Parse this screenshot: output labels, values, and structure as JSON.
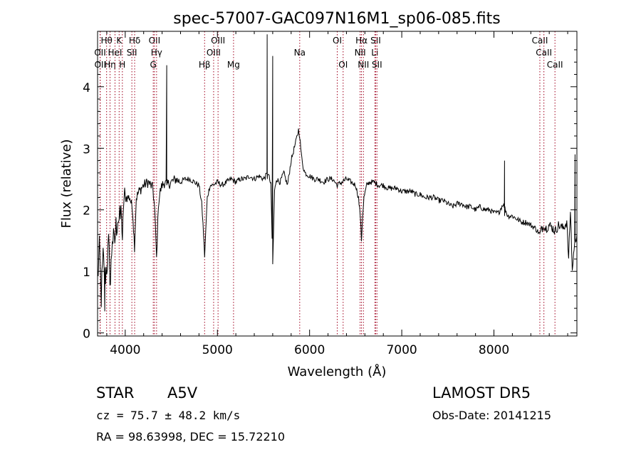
{
  "chart_data": {
    "type": "line",
    "title": "spec-57007-GAC097N16M1_sp06-085.fits",
    "xlabel": "Wavelength (Å)",
    "ylabel": "Flux (relative)",
    "xlim": [
      3700,
      8900
    ],
    "ylim": [
      -0.05,
      4.9
    ],
    "xticks": [
      4000,
      5000,
      6000,
      7000,
      8000
    ],
    "yticks": [
      0,
      1,
      2,
      3,
      4
    ],
    "grid": false,
    "legend": "none",
    "line_color": "#000000",
    "marker_color": "#a0001e",
    "spectrum": {
      "x": [
        3700,
        3720,
        3740,
        3760,
        3780,
        3800,
        3820,
        3840,
        3860,
        3880,
        3900,
        3920,
        3940,
        3960,
        3970,
        3980,
        4000,
        4050,
        4080,
        4101,
        4120,
        4150,
        4200,
        4250,
        4300,
        4320,
        4340,
        4360,
        4380,
        4400,
        4430,
        4450,
        4500,
        4550,
        4600,
        4650,
        4700,
        4750,
        4800,
        4830,
        4850,
        4861,
        4875,
        4890,
        4920,
        4950,
        5000,
        5050,
        5100,
        5150,
        5200,
        5250,
        5300,
        5350,
        5400,
        5450,
        5500,
        5550,
        5580,
        5600,
        5620,
        5640,
        5680,
        5720,
        5760,
        5800,
        5850,
        5880,
        5893,
        5910,
        5930,
        5950,
        6000,
        6050,
        6100,
        6150,
        6200,
        6250,
        6300,
        6350,
        6400,
        6450,
        6500,
        6530,
        6550,
        6563,
        6575,
        6590,
        6620,
        6650,
        6700,
        6750,
        6800,
        6850,
        6900,
        6950,
        7000,
        7050,
        7100,
        7150,
        7200,
        7250,
        7300,
        7350,
        7400,
        7450,
        7500,
        7550,
        7600,
        7650,
        7700,
        7750,
        7800,
        7850,
        7900,
        7950,
        8000,
        8050,
        8100,
        8150,
        8200,
        8250,
        8300,
        8350,
        8400,
        8450,
        8498,
        8520,
        8542,
        8560,
        8600,
        8640,
        8662,
        8700,
        8750,
        8790,
        8810,
        8830,
        8850,
        8870,
        8900
      ],
      "y": [
        0.9,
        1.3,
        0.6,
        1.2,
        0.9,
        1.1,
        1.4,
        0.8,
        1.6,
        1.4,
        1.7,
        1.9,
        1.8,
        2.0,
        1.3,
        2.1,
        2.2,
        2.2,
        2.0,
        1.4,
        2.2,
        2.3,
        2.4,
        2.45,
        2.35,
        2.0,
        1.2,
        2.1,
        2.3,
        2.4,
        2.45,
        2.4,
        2.45,
        2.5,
        2.45,
        2.5,
        2.5,
        2.45,
        2.4,
        2.1,
        1.6,
        1.25,
        1.7,
        2.2,
        2.4,
        2.4,
        2.45,
        2.4,
        2.45,
        2.5,
        2.45,
        2.5,
        2.5,
        2.55,
        2.5,
        2.55,
        2.5,
        2.6,
        2.4,
        1.1,
        2.3,
        2.5,
        2.45,
        2.6,
        2.4,
        2.8,
        3.1,
        3.3,
        3.2,
        2.9,
        2.7,
        2.6,
        2.55,
        2.5,
        2.5,
        2.45,
        2.5,
        2.5,
        2.4,
        2.45,
        2.5,
        2.45,
        2.4,
        2.2,
        1.9,
        1.5,
        1.9,
        2.2,
        2.4,
        2.45,
        2.45,
        2.4,
        2.4,
        2.35,
        2.35,
        2.35,
        2.3,
        2.3,
        2.3,
        2.25,
        2.25,
        2.2,
        2.2,
        2.2,
        2.15,
        2.15,
        2.1,
        2.05,
        2.1,
        2.1,
        2.05,
        2.05,
        2.0,
        2.05,
        2.0,
        2.0,
        1.95,
        1.95,
        2.1,
        1.9,
        1.9,
        1.85,
        1.8,
        1.8,
        1.75,
        1.7,
        1.6,
        1.7,
        1.75,
        1.7,
        1.75,
        1.7,
        1.65,
        1.75,
        1.7,
        1.8,
        1.2,
        2.0,
        1.0,
        1.4,
        1.6
      ],
      "spikes": [
        {
          "x": 3778,
          "y": 0.35
        },
        {
          "x": 4450,
          "y": 4.35
        },
        {
          "x": 4451,
          "y": 2.4
        },
        {
          "x": 5540,
          "y": 4.85
        },
        {
          "x": 5541,
          "y": 2.5
        },
        {
          "x": 5600,
          "y": 4.5
        },
        {
          "x": 8115,
          "y": 2.8
        },
        {
          "x": 8116,
          "y": 1.9
        },
        {
          "x": 8880,
          "y": 2.9
        },
        {
          "x": 8881,
          "y": 1.5
        }
      ]
    },
    "lines": [
      {
        "label": "Hθ",
        "x": 3798,
        "row": 0
      },
      {
        "label": "OII",
        "x": 3727,
        "row": 1
      },
      {
        "label": "OII",
        "x": 3729,
        "row": 2
      },
      {
        "label": "Hη",
        "x": 3835,
        "row": 2
      },
      {
        "label": "HeI",
        "x": 3889,
        "row": 1
      },
      {
        "label": "K",
        "x": 3934,
        "row": 0
      },
      {
        "label": "H",
        "x": 3969,
        "row": 2
      },
      {
        "label": "Hδ",
        "x": 4102,
        "row": 0
      },
      {
        "label": "SII",
        "x": 4072,
        "row": 1
      },
      {
        "label": "OII",
        "x": 4317,
        "row": 0
      },
      {
        "label": "Hγ",
        "x": 4340,
        "row": 1
      },
      {
        "label": "G",
        "x": 4304,
        "row": 2
      },
      {
        "label": "Hβ",
        "x": 4861,
        "row": 2
      },
      {
        "label": "OIII",
        "x": 4959,
        "row": 1
      },
      {
        "label": "OIII",
        "x": 5007,
        "row": 0
      },
      {
        "label": "Mg",
        "x": 5175,
        "row": 2
      },
      {
        "label": "Na",
        "x": 5893,
        "row": 1
      },
      {
        "label": "OI",
        "x": 6300,
        "row": 0
      },
      {
        "label": "OI",
        "x": 6364,
        "row": 2
      },
      {
        "label": "Hα",
        "x": 6563,
        "row": 0
      },
      {
        "label": "NII",
        "x": 6548,
        "row": 1
      },
      {
        "label": "NII",
        "x": 6584,
        "row": 2
      },
      {
        "label": "SII",
        "x": 6717,
        "row": 0
      },
      {
        "label": "Li",
        "x": 6708,
        "row": 1
      },
      {
        "label": "SII",
        "x": 6731,
        "row": 2
      },
      {
        "label": "CaII",
        "x": 8498,
        "row": 0
      },
      {
        "label": "CaII",
        "x": 8542,
        "row": 1
      },
      {
        "label": "CaII",
        "x": 8662,
        "row": 2
      }
    ]
  },
  "info": {
    "class": "STAR",
    "subclass": "A5V",
    "survey": "LAMOST DR5",
    "cz": "cz = 75.7 ± 48.2 km/s",
    "obs_date": "Obs-Date: 20141215",
    "coords": "RA =  98.63998, DEC =  15.72210"
  }
}
